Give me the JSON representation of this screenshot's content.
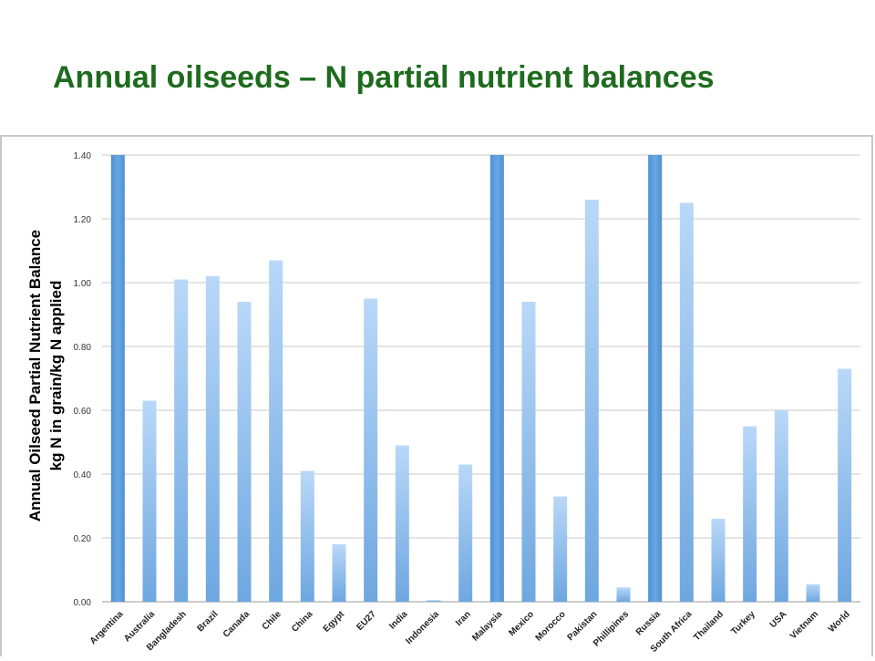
{
  "slide": {
    "title": "Annual oilseeds – N partial nutrient balances"
  },
  "colors": {
    "title": "#1e6b1e",
    "bar_normal": "#9cc6f2",
    "bar_capped": "#5b9ad8",
    "grid": "#c9c9c9"
  },
  "chart_data": {
    "type": "bar",
    "ylabel_line1": "Annual Oilseed Partial Nutrient Balance",
    "ylabel_line2": "kg N in grain/kg N applied",
    "ylim": [
      0,
      1.4
    ],
    "yticks": [
      "0.00",
      "0.20",
      "0.40",
      "0.60",
      "0.80",
      "1.00",
      "1.20",
      "1.40"
    ],
    "ytick_values": [
      0,
      0.2,
      0.4,
      0.6,
      0.8,
      1.0,
      1.2,
      1.4
    ],
    "grid": true,
    "categories": [
      "Argentina",
      "Australia",
      "Bangladesh",
      "Brazil",
      "Canada",
      "Chile",
      "China",
      "Egypt",
      "EU27",
      "India",
      "Indonesia",
      "Iran",
      "Malaysia",
      "Mexico",
      "Morocco",
      "Pakistan",
      "Phillipines",
      "Russia",
      "South Africa",
      "Thailand",
      "Turkey",
      "USA",
      "Vietnam",
      "World"
    ],
    "values": [
      1.4,
      0.63,
      1.01,
      1.02,
      0.94,
      1.07,
      0.41,
      0.18,
      0.95,
      0.49,
      0.005,
      0.43,
      1.4,
      0.94,
      0.33,
      1.26,
      0.045,
      1.4,
      1.25,
      0.26,
      0.55,
      0.6,
      0.055,
      0.73
    ],
    "capped_at_axis_max": [
      "Argentina",
      "Malaysia",
      "Russia"
    ]
  }
}
